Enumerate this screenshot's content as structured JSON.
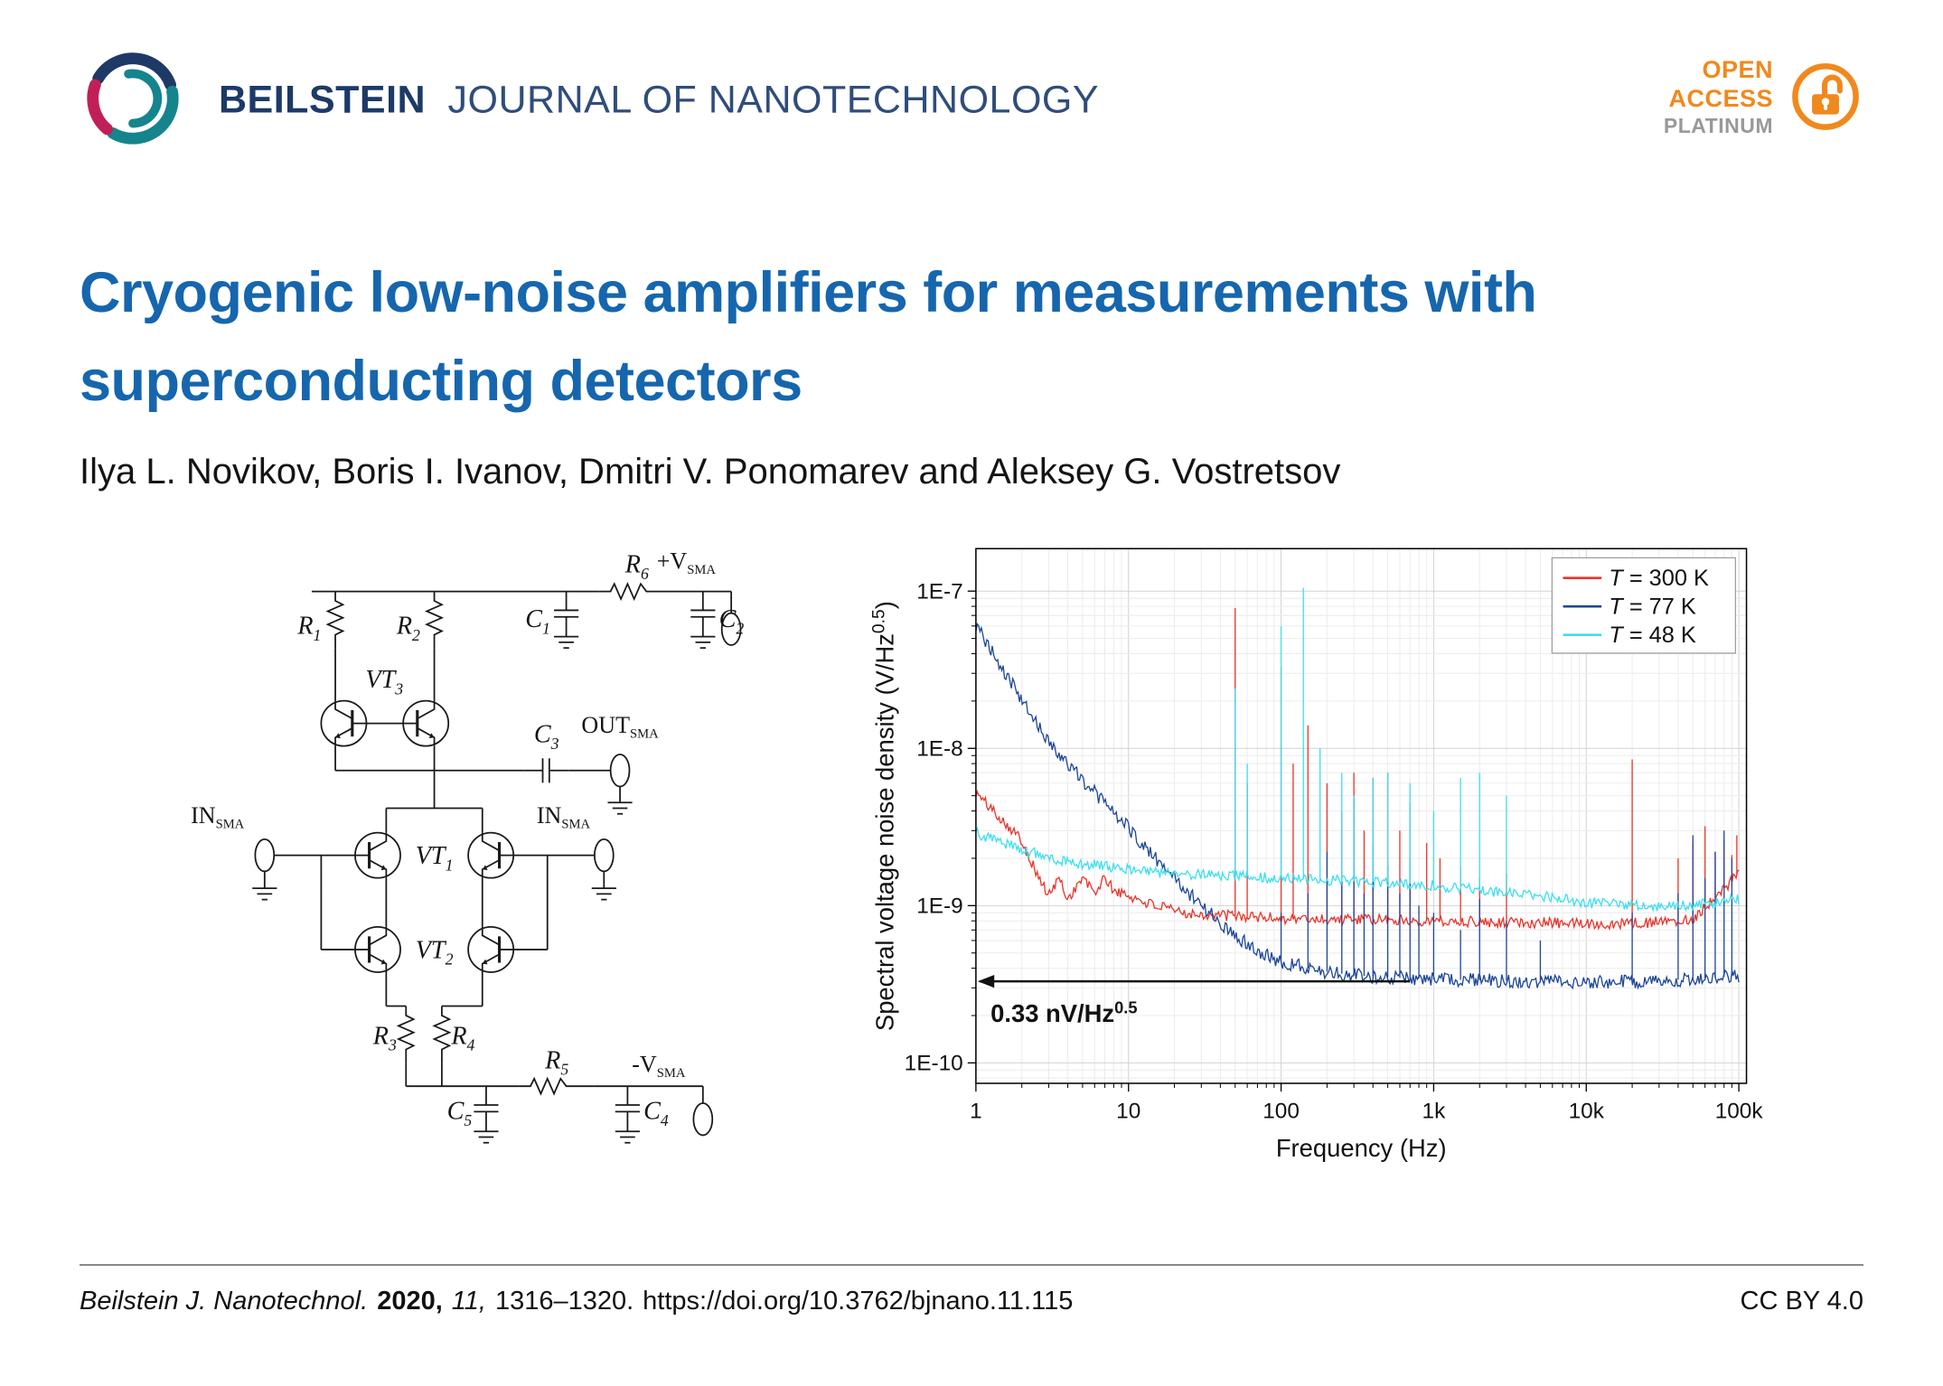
{
  "header": {
    "journal_name_bold": "BEILSTEIN",
    "journal_name_rest": "JOURNAL OF NANOTECHNOLOGY",
    "open_access": {
      "line1": "OPEN",
      "line2": "ACCESS",
      "line3": "PLATINUM"
    },
    "brand_colors": {
      "navy": "#1d3a66",
      "teal": "#15848d",
      "magenta": "#c02057",
      "orange": "#f0891d",
      "platinum_gray": "#97999b"
    }
  },
  "title": {
    "lines": [
      "Cryogenic low-noise amplifiers for measurements with",
      "superconducting detectors"
    ],
    "color": "#1666ae"
  },
  "authors": "Ilya L. Novikov, Boris I. Ivanov, Dmitri V. Ponomarev and Aleksey G. Vostretsov",
  "circuit": {
    "labels": {
      "r1": {
        "base": "R",
        "sub": "1"
      },
      "r2": {
        "base": "R",
        "sub": "2"
      },
      "r3": {
        "base": "R",
        "sub": "3"
      },
      "r4": {
        "base": "R",
        "sub": "4"
      },
      "r5": {
        "base": "R",
        "sub": "5"
      },
      "r6": {
        "base": "R",
        "sub": "6"
      },
      "c1": {
        "base": "C",
        "sub": "1"
      },
      "c2": {
        "base": "C",
        "sub": "2"
      },
      "c3": {
        "base": "C",
        "sub": "3"
      },
      "c4": {
        "base": "C",
        "sub": "4"
      },
      "c5": {
        "base": "C",
        "sub": "5"
      },
      "vt1": {
        "base": "VT",
        "sub": "1"
      },
      "vt2": {
        "base": "VT",
        "sub": "2"
      },
      "vt3": {
        "base": "VT",
        "sub": "3"
      },
      "in_left": {
        "base": "IN",
        "sub": "SMA"
      },
      "in_right": {
        "base": "IN",
        "sub": "SMA"
      },
      "out": {
        "base": "OUT",
        "sub": "SMA"
      },
      "v_plus": {
        "base": "+V",
        "sub": "SMA"
      },
      "v_minus": {
        "base": "-V",
        "sub": "SMA"
      }
    }
  },
  "chart_data": {
    "type": "line",
    "x_scale": "log",
    "y_scale": "log",
    "grid": true,
    "xlabel": "Frequency (Hz)",
    "ylabel": "Spectral voltage noise density (V/Hz^0.5)",
    "xlim": [
      1,
      100000
    ],
    "ylim": [
      1e-10,
      1e-07
    ],
    "x_ticks": [
      {
        "label": "1",
        "value": 1
      },
      {
        "label": "10",
        "value": 10
      },
      {
        "label": "100",
        "value": 100
      },
      {
        "label": "1k",
        "value": 1000
      },
      {
        "label": "10k",
        "value": 10000
      },
      {
        "label": "100k",
        "value": 100000
      }
    ],
    "y_ticks": [
      {
        "label": "1E-7",
        "value": 1e-07
      },
      {
        "label": "1E-8",
        "value": 1e-08
      },
      {
        "label": "1E-9",
        "value": 1e-09
      },
      {
        "label": "1E-10",
        "value": 1e-10
      }
    ],
    "legend_position": "top-right",
    "annotation": {
      "text": "0.33 nV/Hz^0.5",
      "y_value": 3.3e-10,
      "arrow_from_hz": 700,
      "arrow_to_hz": 1
    },
    "series": [
      {
        "name": "T = 300 K",
        "color": "#e8362c",
        "jitter": 0.035,
        "points": [
          [
            1,
            5.2e-09
          ],
          [
            1.5,
            3.5e-09
          ],
          [
            2,
            2.6e-09
          ],
          [
            2.5,
            1.6e-09
          ],
          [
            3,
            1.15e-09
          ],
          [
            3.5,
            1.5e-09
          ],
          [
            4,
            1.1e-09
          ],
          [
            5,
            1.5e-09
          ],
          [
            6,
            1.2e-09
          ],
          [
            7,
            1.5e-09
          ],
          [
            8,
            1.25e-09
          ],
          [
            10,
            1.15e-09
          ],
          [
            15,
            1e-09
          ],
          [
            20,
            9.2e-10
          ],
          [
            30,
            8.8e-10
          ],
          [
            50,
            8.6e-10
          ],
          [
            80,
            8.4e-10
          ],
          [
            100,
            8.3e-10
          ],
          [
            200,
            8.2e-10
          ],
          [
            500,
            8.1e-10
          ],
          [
            1000,
            8e-10
          ],
          [
            2000,
            7.9e-10
          ],
          [
            5000,
            7.8e-10
          ],
          [
            10000,
            7.7e-10
          ],
          [
            20000,
            7.7e-10
          ],
          [
            50000,
            8.2e-10
          ],
          [
            100000,
            1.6e-09
          ]
        ],
        "spikes": [
          [
            50,
            7.8e-08
          ],
          [
            60,
            6e-09
          ],
          [
            100,
            3.3e-08
          ],
          [
            120,
            8e-09
          ],
          [
            150,
            1.4e-08
          ],
          [
            200,
            6e-09
          ],
          [
            250,
            4e-09
          ],
          [
            300,
            7e-09
          ],
          [
            350,
            3e-09
          ],
          [
            400,
            6.5e-09
          ],
          [
            500,
            7e-09
          ],
          [
            600,
            3e-09
          ],
          [
            700,
            4.5e-09
          ],
          [
            900,
            2.5e-09
          ],
          [
            1100,
            2e-09
          ],
          [
            1500,
            1.8e-09
          ],
          [
            2000,
            1.5e-09
          ],
          [
            3000,
            1.6e-09
          ],
          [
            20000,
            8.5e-09
          ],
          [
            40000,
            2e-09
          ],
          [
            50000,
            2.5e-09
          ],
          [
            60000,
            3.2e-09
          ],
          [
            70000,
            2.2e-09
          ],
          [
            80000,
            2.6e-09
          ],
          [
            90000,
            2.1e-09
          ],
          [
            97000,
            2.8e-09
          ]
        ]
      },
      {
        "name": "T = 77 K",
        "color": "#1f4796",
        "jitter": 0.045,
        "points": [
          [
            1,
            6e-08
          ],
          [
            1.5,
            3.2e-08
          ],
          [
            2,
            2e-08
          ],
          [
            3,
            1.1e-08
          ],
          [
            4,
            8e-09
          ],
          [
            5,
            6.3e-09
          ],
          [
            7,
            4.5e-09
          ],
          [
            10,
            3.1e-09
          ],
          [
            15,
            2e-09
          ],
          [
            20,
            1.5e-09
          ],
          [
            30,
            1e-09
          ],
          [
            50,
            6.5e-10
          ],
          [
            70,
            5.2e-10
          ],
          [
            100,
            4.4e-10
          ],
          [
            150,
            4e-10
          ],
          [
            200,
            3.8e-10
          ],
          [
            300,
            3.6e-10
          ],
          [
            500,
            3.5e-10
          ],
          [
            1000,
            3.4e-10
          ],
          [
            2000,
            3.35e-10
          ],
          [
            5000,
            3.3e-10
          ],
          [
            10000,
            3.3e-10
          ],
          [
            20000,
            3.3e-10
          ],
          [
            50000,
            3.4e-10
          ],
          [
            100000,
            3.6e-10
          ]
        ],
        "spikes": [
          [
            100,
            9e-10
          ],
          [
            150,
            1.2e-09
          ],
          [
            200,
            2.2e-09
          ],
          [
            250,
            1.5e-09
          ],
          [
            300,
            4.8e-09
          ],
          [
            350,
            1.2e-09
          ],
          [
            400,
            2.5e-09
          ],
          [
            500,
            1.8e-09
          ],
          [
            600,
            1.2e-09
          ],
          [
            700,
            2e-09
          ],
          [
            800,
            1e-09
          ],
          [
            1000,
            9e-10
          ],
          [
            1500,
            7e-10
          ],
          [
            2000,
            1.1e-09
          ],
          [
            3000,
            8e-10
          ],
          [
            5000,
            6e-10
          ],
          [
            20000,
            9e-10
          ],
          [
            40000,
            1.2e-09
          ],
          [
            50000,
            2.8e-09
          ],
          [
            60000,
            1.5e-09
          ],
          [
            70000,
            2.2e-09
          ],
          [
            80000,
            3e-09
          ],
          [
            90000,
            2e-09
          ]
        ]
      },
      {
        "name": "T = 48 K",
        "color": "#3fdfef",
        "jitter": 0.035,
        "points": [
          [
            1,
            2.9e-09
          ],
          [
            2,
            2.3e-09
          ],
          [
            3,
            2e-09
          ],
          [
            5,
            1.85e-09
          ],
          [
            10,
            1.7e-09
          ],
          [
            20,
            1.6e-09
          ],
          [
            50,
            1.55e-09
          ],
          [
            100,
            1.5e-09
          ],
          [
            200,
            1.45e-09
          ],
          [
            500,
            1.4e-09
          ],
          [
            1000,
            1.35e-09
          ],
          [
            2000,
            1.25e-09
          ],
          [
            5000,
            1.15e-09
          ],
          [
            10000,
            1.05e-09
          ],
          [
            20000,
            1e-09
          ],
          [
            50000,
            1e-09
          ],
          [
            100000,
            1.1e-09
          ]
        ],
        "spikes": [
          [
            50,
            2.4e-08
          ],
          [
            60,
            8e-09
          ],
          [
            100,
            6e-08
          ],
          [
            140,
            1.05e-07
          ],
          [
            180,
            1e-08
          ],
          [
            250,
            7e-09
          ],
          [
            300,
            5e-09
          ],
          [
            400,
            6.5e-09
          ],
          [
            500,
            7e-09
          ],
          [
            700,
            6e-09
          ],
          [
            1000,
            4e-09
          ],
          [
            1500,
            6.5e-09
          ],
          [
            2000,
            7e-09
          ],
          [
            3000,
            5e-09
          ]
        ]
      }
    ]
  },
  "footer": {
    "journal": "Beilstein J. Nanotechnol.",
    "year": "2020,",
    "volume": "11,",
    "pages": "1316–1320.",
    "doi": "https://doi.org/10.3762/bjnano.11.115",
    "license": "CC BY 4.0"
  }
}
